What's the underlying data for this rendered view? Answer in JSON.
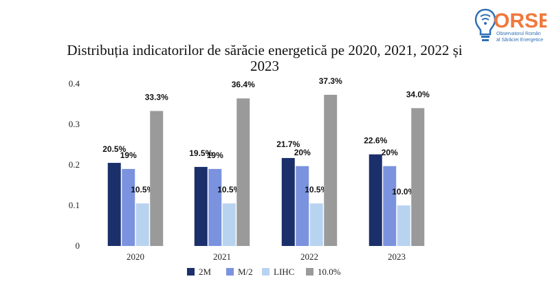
{
  "logo": {
    "name": "ORSE",
    "tagline_line1": "Observatorul Român",
    "tagline_line2": "al Sărăciei Energetice"
  },
  "chart_data": {
    "type": "bar",
    "title": "Distribuția indicatorilor de sărăcie energetică pe 2020, 2021, 2022 și 2023",
    "title_lines": [
      "Distribuția indicatorilor de sărăcie energetică pe 2020, 2021, 2022 și",
      "2023"
    ],
    "categories": [
      "2020",
      "2021",
      "2022",
      "2023"
    ],
    "ylim": [
      0,
      0.4
    ],
    "yticks": [
      "0",
      "0.1",
      "0.2",
      "0.3",
      "0.4"
    ],
    "grid": false,
    "legend_position": "bottom",
    "series": [
      {
        "name": "2M",
        "color": "#1b2f6b",
        "values": [
          0.205,
          0.195,
          0.217,
          0.226
        ],
        "labels": [
          "20.5%",
          "19.5%",
          "21.7%",
          "22.6%"
        ]
      },
      {
        "name": "M/2",
        "color": "#7b93de",
        "values": [
          0.19,
          0.19,
          0.197,
          0.197
        ],
        "labels": [
          "19%",
          "19%",
          "20%",
          "20%"
        ]
      },
      {
        "name": "LIHC",
        "color": "#b8d3f0",
        "values": [
          0.105,
          0.105,
          0.105,
          0.1
        ],
        "labels": [
          "10.5%",
          "10.5%",
          "10.5%",
          "10.0%"
        ]
      },
      {
        "name": "10.0%",
        "color": "#9a9a9a",
        "values": [
          0.333,
          0.364,
          0.373,
          0.34
        ],
        "labels": [
          "33.3%",
          "36.4%",
          "37.3%",
          "34.0%"
        ]
      }
    ]
  }
}
